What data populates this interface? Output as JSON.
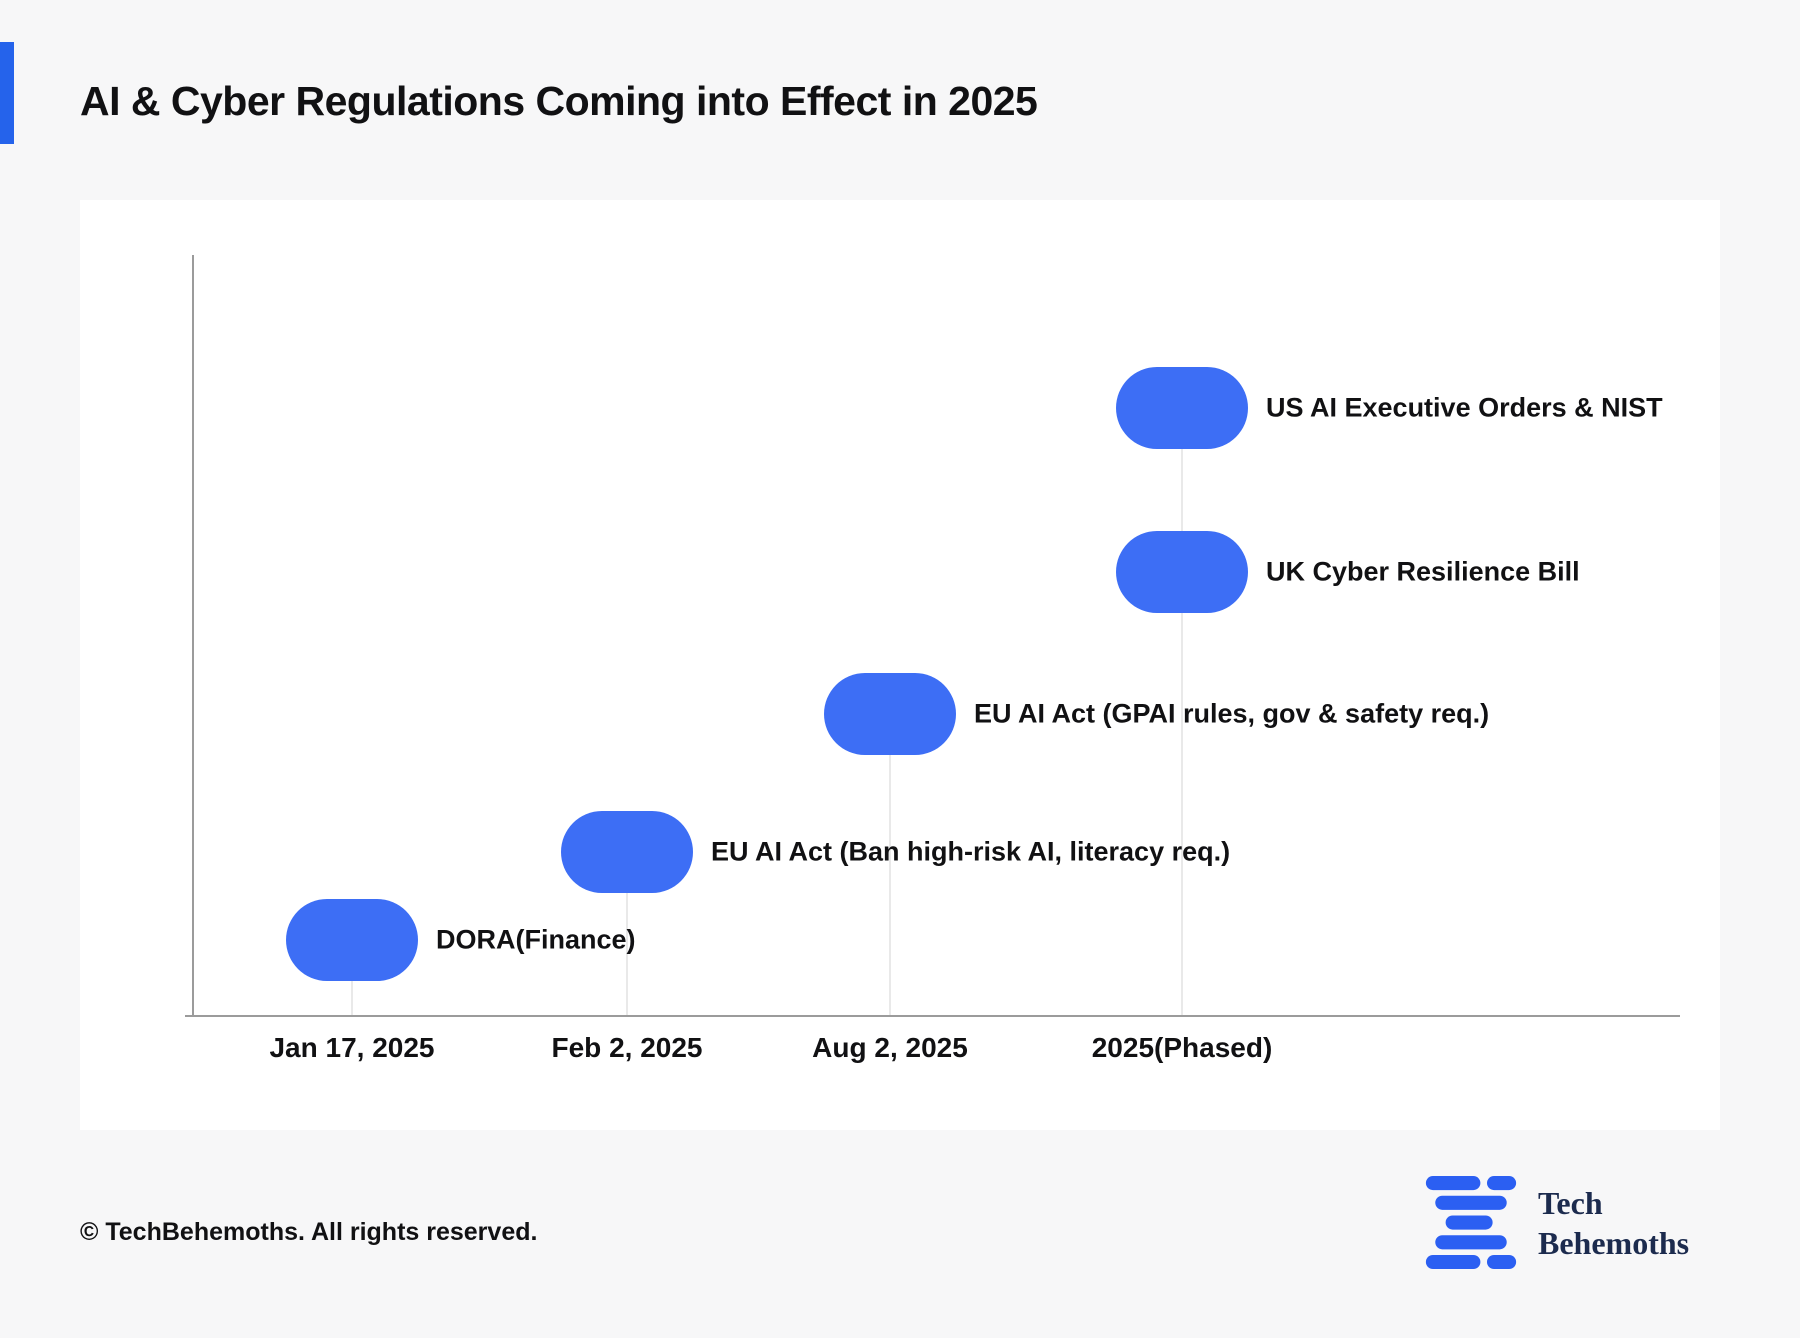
{
  "page": {
    "title": "AI & Cyber Regulations Coming into Effect in 2025",
    "footer": "© TechBehemoths. All rights reserved.",
    "logo": {
      "line1": "Tech",
      "line2": "Behemoths"
    }
  },
  "colors": {
    "accent": "#2563eb",
    "marker": "#3d6ef5",
    "logo_navy": "#1c2b4e",
    "axis": "#9b9b9b",
    "stem": "#e9e9e9",
    "background": "#f7f7f8",
    "card": "#ffffff",
    "text": "#111113"
  },
  "chart_data": {
    "type": "scatter",
    "title": "AI & Cyber Regulations Coming into Effect in 2025",
    "marker": "pill",
    "marker_color": "#3d6ef5",
    "grid": false,
    "legend": "none",
    "x_categories": [
      "Jan 17, 2025",
      "Feb 2, 2025",
      "Aug 2, 2025",
      "2025(Phased)"
    ],
    "points": [
      {
        "x": "Jan 17, 2025",
        "col": 0,
        "level": 1,
        "label": "DORA(Finance)"
      },
      {
        "x": "Feb 2, 2025",
        "col": 1,
        "level": 2,
        "label": "EU AI Act (Ban high-risk AI, literacy req.)"
      },
      {
        "x": "Aug 2, 2025",
        "col": 2,
        "level": 3,
        "label": "EU AI Act (GPAI rules, gov & safety req.)"
      },
      {
        "x": "2025(Phased)",
        "col": 3,
        "level": 4,
        "label": "UK Cyber Resilience Bill"
      },
      {
        "x": "2025(Phased)",
        "col": 3,
        "level": 5,
        "label": "US AI Executive Orders & NIST"
      }
    ]
  }
}
